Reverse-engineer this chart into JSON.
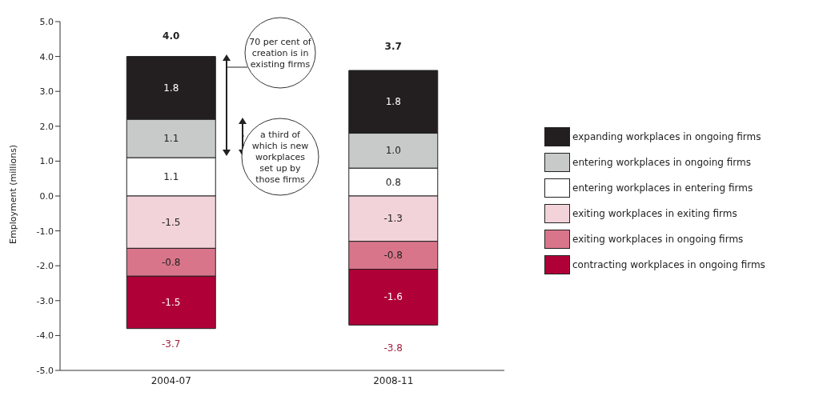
{
  "chart_data": {
    "type": "bar",
    "stacked": true,
    "ylabel": "Employment (millions)",
    "categories": [
      "2004-07",
      "2008-11"
    ],
    "series": [
      {
        "name": "entering workplaces in entering firms",
        "color": "#ffffff",
        "values": [
          1.1,
          0.8
        ],
        "value_labels": [
          "1.1",
          "0.8"
        ]
      },
      {
        "name": "entering workplaces in ongoing firms",
        "color": "#c8c9c9",
        "values": [
          1.1,
          1.0
        ],
        "value_labels": [
          "1.1",
          "1.0"
        ]
      },
      {
        "name": "expanding workplaces in ongoing firms",
        "color": "#231f20",
        "values": [
          1.8,
          1.8
        ],
        "value_labels": [
          "1.8",
          "1.8"
        ]
      },
      {
        "name": "exiting workplaces in exiting firms",
        "color": "#f3d3da",
        "values": [
          -1.5,
          -1.3
        ],
        "value_labels": [
          "-1.5",
          "-1.3"
        ]
      },
      {
        "name": "exiting workplaces in ongoing firms",
        "color": "#d9758a",
        "values": [
          -0.8,
          -0.8
        ],
        "value_labels": [
          "-0.8",
          "-0.8"
        ]
      },
      {
        "name": "contracting workplaces in ongoing firms",
        "color": "#b00038",
        "values": [
          -1.5,
          -1.6
        ],
        "value_labels": [
          "-1.5",
          "-1.6"
        ]
      }
    ],
    "ylim": [
      -5,
      5
    ],
    "yticks": [
      {
        "value": -5,
        "label": "-5.0"
      },
      {
        "value": -4,
        "label": "-4.0"
      },
      {
        "value": -3,
        "label": "-3.0"
      },
      {
        "value": -2,
        "label": "-2.0"
      },
      {
        "value": -1,
        "label": "-1.0"
      },
      {
        "value": 0,
        "label": "0.0"
      },
      {
        "value": 1,
        "label": "1.0"
      },
      {
        "value": 2,
        "label": "2.0"
      },
      {
        "value": 3,
        "label": "3.0"
      },
      {
        "value": 4,
        "label": "4.0"
      },
      {
        "value": 5,
        "label": "5.0"
      }
    ],
    "annotations": [
      {
        "text": "4.0",
        "x": "2004-07",
        "y": 4.0
      },
      {
        "text": "-3.7",
        "x": "2004-07",
        "y": -3.7
      },
      {
        "text": "3.7",
        "x": "2008-11",
        "y": 3.7
      },
      {
        "text": "-3.8",
        "x": "2008-11",
        "y": -3.8
      },
      "70 per cent of creation is in existing firms",
      "a third of which is new workplaces set up by those firms"
    ],
    "legend": "right"
  }
}
